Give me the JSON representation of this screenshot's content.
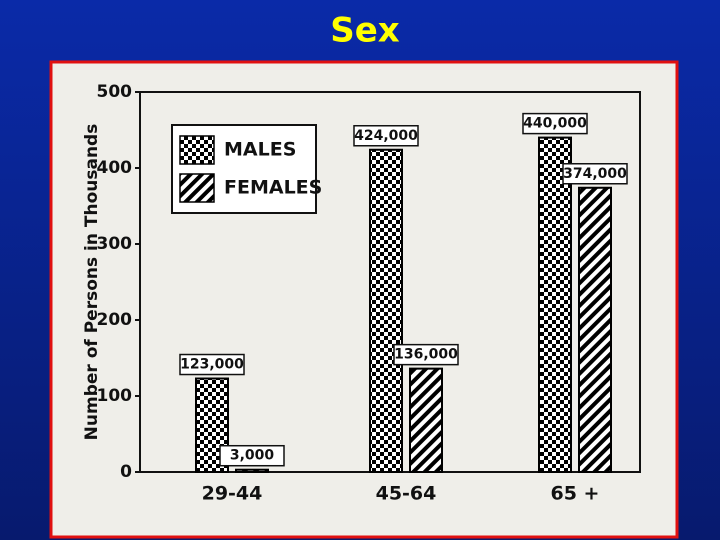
{
  "slide": {
    "title": "Sex"
  },
  "chart_data": {
    "type": "bar",
    "y_label": "Number of Persons in Thousands",
    "categories": [
      "29-44",
      "45-64",
      "65 +"
    ],
    "series": [
      {
        "name": "MALES",
        "color": "#000000",
        "pattern": "checker",
        "values": [
          123,
          424,
          440
        ],
        "value_labels": [
          "123,000",
          "424,000",
          "440,000"
        ]
      },
      {
        "name": "FEMALES",
        "color": "#000000",
        "pattern": "diagonal",
        "values": [
          3,
          136,
          374
        ],
        "value_labels": [
          "3,000",
          "136,000",
          "374,000"
        ]
      }
    ],
    "ylim": [
      0,
      500
    ],
    "yticks": [
      0,
      100,
      200,
      300,
      400,
      500
    ],
    "legend": "upper left"
  }
}
